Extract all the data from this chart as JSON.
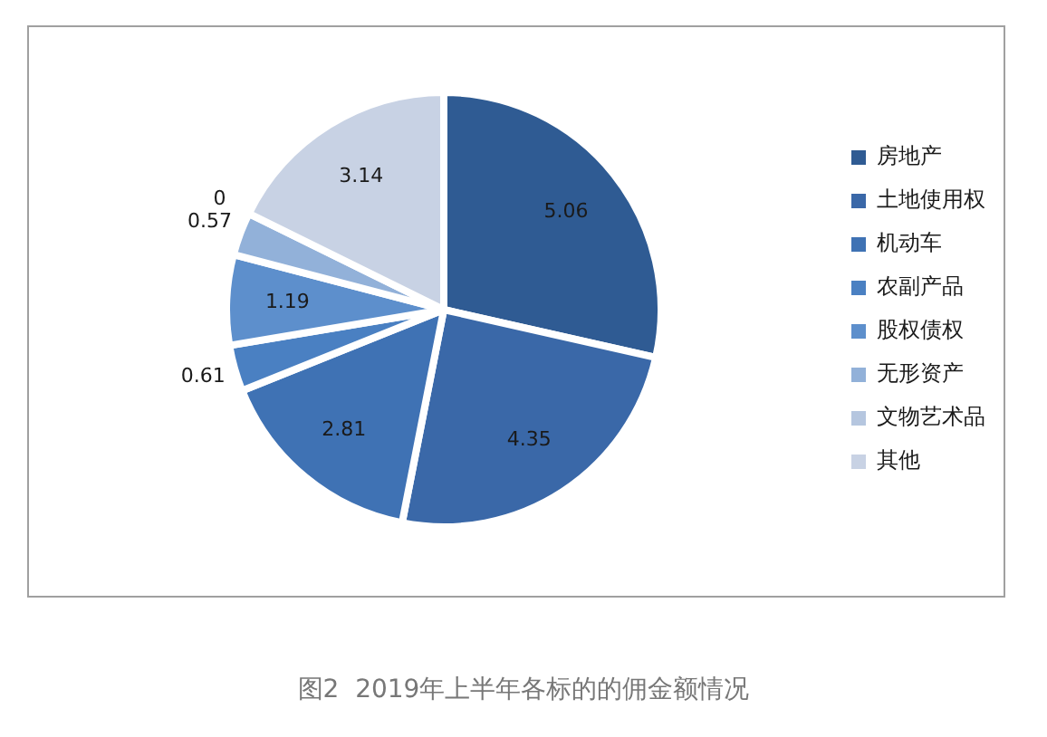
{
  "chart_data": {
    "type": "pie",
    "title": "图2  2019年上半年各标的的佣金额情况",
    "categories": [
      "房地产",
      "土地使用权",
      "机动车",
      "农副产品",
      "股权债权",
      "无形资产",
      "文物艺术品",
      "其他"
    ],
    "values": [
      5.06,
      4.35,
      2.81,
      0.61,
      1.19,
      0.57,
      0,
      3.14
    ],
    "value_labels": [
      "5.06",
      "4.35",
      "2.81",
      "0.61",
      "1.19",
      "0.57",
      "0",
      "3.14"
    ],
    "colors": [
      "#2f5b93",
      "#3a68a8",
      "#3f72b4",
      "#4a80c2",
      "#5d8fcc",
      "#92b1d9",
      "#b5c6df",
      "#c8d2e4"
    ],
    "legend": "right"
  }
}
